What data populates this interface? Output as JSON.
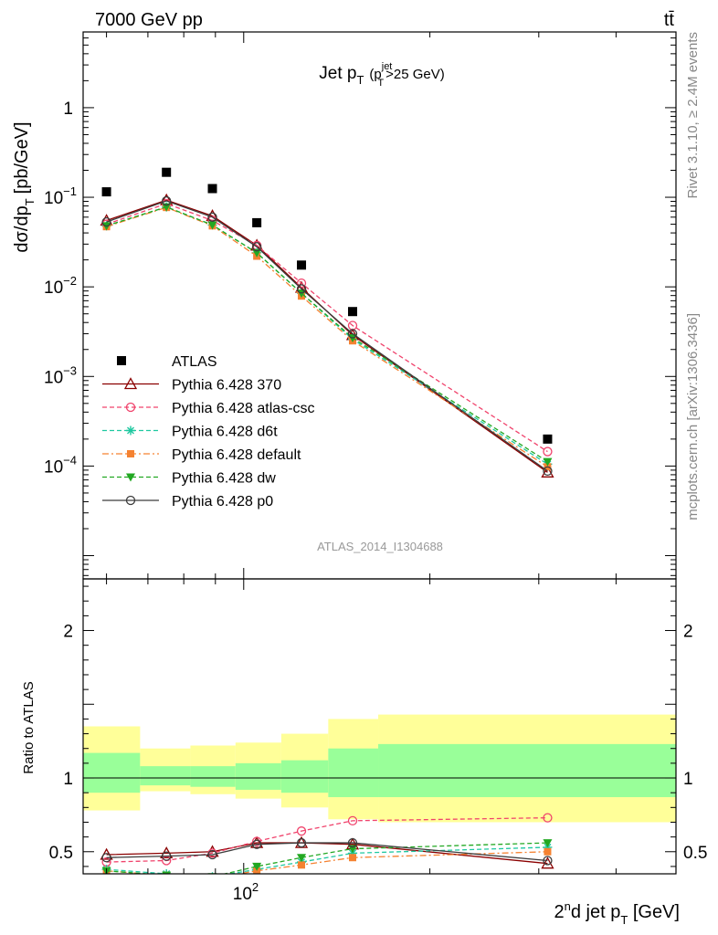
{
  "header": {
    "left": "7000 GeV pp",
    "right": "tt̄"
  },
  "side_labels": {
    "rivet": "Rivet 3.1.10, ≥ 2.4M events",
    "mcplots": "mcplots.cern.ch [arXiv:1306.3436]"
  },
  "watermark": "ATLAS_2014_I1304688",
  "chart_data": [
    {
      "type": "line",
      "title": "Jet pT (pT jet>25 GeV)",
      "title_parts": {
        "main": "Jet p",
        "sub": "T",
        "paren_open": "(p",
        "sup": "jet",
        "sub2": "T",
        "paren_close": ">25 GeV)"
      },
      "ylabel": "dσ/dp T [pb/GeV]",
      "ylabel_parts": {
        "main": "dσ/dp",
        "sub": "T",
        "unit": "[pb/GeV]"
      },
      "xscale": "log",
      "yscale": "log",
      "xlim": [
        55,
        500
      ],
      "ylim": [
        5.5e-06,
        7
      ],
      "ytick_labels": [
        {
          "value": 0.0001,
          "base": "10",
          "exp": "−4"
        },
        {
          "value": 0.001,
          "base": "10",
          "exp": "−3"
        },
        {
          "value": 0.01,
          "base": "10",
          "exp": "−2"
        },
        {
          "value": 0.1,
          "base": "10",
          "exp": "−1"
        },
        {
          "value": 1,
          "base": "1",
          "exp": ""
        }
      ],
      "legend_position": "bottom-left",
      "data": {
        "name": "ATLAS",
        "x": [
          60,
          75,
          89,
          105,
          124,
          150,
          310
        ],
        "xerr_edges": [
          [
            55,
            68
          ],
          [
            68,
            82
          ],
          [
            82,
            97
          ],
          [
            97,
            115
          ],
          [
            115,
            137
          ],
          [
            137,
            165
          ],
          [
            165,
            500
          ]
        ],
        "y": [
          0.115,
          0.19,
          0.125,
          0.052,
          0.0175,
          0.0053,
          0.0002
        ]
      },
      "series": [
        {
          "name": "Pythia 6.428 370",
          "color": "#8b0000",
          "dash": "solid",
          "marker": "triangle-open",
          "y": [
            0.055,
            0.093,
            0.062,
            0.029,
            0.0098,
            0.0029,
            8.5e-05
          ]
        },
        {
          "name": "Pythia 6.428 atlas-csc",
          "color": "#f0436c",
          "dash": "dashed",
          "marker": "circle-open",
          "y": [
            0.05,
            0.085,
            0.055,
            0.029,
            0.011,
            0.0037,
            0.000145
          ]
        },
        {
          "name": "Pythia 6.428 d6t",
          "color": "#1ec8a0",
          "dash": "dashed",
          "marker": "star",
          "y": [
            0.048,
            0.078,
            0.049,
            0.024,
            0.0085,
            0.0026,
            0.000105
          ]
        },
        {
          "name": "Pythia 6.428 default",
          "color": "#f58231",
          "dash": "dashdot",
          "marker": "square",
          "y": [
            0.047,
            0.077,
            0.048,
            0.022,
            0.0079,
            0.0025,
            9.8e-05
          ]
        },
        {
          "name": "Pythia 6.428 dw",
          "color": "#22a822",
          "dash": "dashed",
          "marker": "triangle-down",
          "y": [
            0.048,
            0.078,
            0.049,
            0.024,
            0.0085,
            0.0027,
            0.000112
          ]
        },
        {
          "name": "Pythia 6.428 p0",
          "color": "#3c3c3c",
          "dash": "solid",
          "marker": "circle-open",
          "y": [
            0.053,
            0.091,
            0.06,
            0.028,
            0.0095,
            0.003,
            8.8e-05
          ]
        }
      ]
    },
    {
      "type": "line",
      "title": "",
      "ylabel": "Ratio to ATLAS",
      "xlabel": "2nd jet pT [GeV]",
      "xlabel_parts": {
        "a": "2",
        "sup": "n",
        "b": "d jet p",
        "sub": "T",
        "unit": " [GeV]"
      },
      "xscale": "log",
      "xlim": [
        55,
        500
      ],
      "ylim": [
        0.35,
        2.35
      ],
      "yticks": [
        0.5,
        1,
        2
      ],
      "ytick_labels": [
        "0.5",
        "1",
        "2"
      ],
      "xtick_labels": [
        {
          "value": 100,
          "base": "10",
          "exp": "2"
        }
      ],
      "bands": [
        {
          "x": [
            55,
            68
          ],
          "outer": [
            0.78,
            1.35
          ],
          "inner": [
            0.9,
            1.17
          ]
        },
        {
          "x": [
            68,
            82
          ],
          "outer": [
            0.91,
            1.2
          ],
          "inner": [
            0.95,
            1.08
          ]
        },
        {
          "x": [
            82,
            97
          ],
          "outer": [
            0.89,
            1.22
          ],
          "inner": [
            0.94,
            1.08
          ]
        },
        {
          "x": [
            97,
            115
          ],
          "outer": [
            0.86,
            1.24
          ],
          "inner": [
            0.92,
            1.1
          ]
        },
        {
          "x": [
            115,
            137
          ],
          "outer": [
            0.8,
            1.3
          ],
          "inner": [
            0.9,
            1.12
          ]
        },
        {
          "x": [
            137,
            165
          ],
          "outer": [
            0.72,
            1.4
          ],
          "inner": [
            0.87,
            1.2
          ]
        },
        {
          "x": [
            165,
            500
          ],
          "outer": [
            0.7,
            1.43
          ],
          "inner": [
            0.87,
            1.23
          ]
        }
      ],
      "series": [
        {
          "name": "Pythia 6.428 370",
          "color": "#8b0000",
          "dash": "solid",
          "marker": "triangle-open",
          "y": [
            0.48,
            0.49,
            0.5,
            0.56,
            0.56,
            0.55,
            0.42
          ]
        },
        {
          "name": "Pythia 6.428 atlas-csc",
          "color": "#f0436c",
          "dash": "dashed",
          "marker": "circle-open",
          "y": [
            0.43,
            0.44,
            0.49,
            0.57,
            0.64,
            0.71,
            0.73
          ]
        },
        {
          "name": "Pythia 6.428 d6t",
          "color": "#1ec8a0",
          "dash": "dashed",
          "marker": "star",
          "y": [
            0.38,
            0.35,
            0.33,
            0.38,
            0.43,
            0.49,
            0.53
          ]
        },
        {
          "name": "Pythia 6.428 default",
          "color": "#f58231",
          "dash": "dashdot",
          "marker": "square",
          "y": [
            0.37,
            0.34,
            0.32,
            0.37,
            0.41,
            0.46,
            0.5
          ]
        },
        {
          "name": "Pythia 6.428 dw",
          "color": "#22a822",
          "dash": "dashed",
          "marker": "triangle-down",
          "y": [
            0.37,
            0.34,
            0.33,
            0.4,
            0.46,
            0.52,
            0.56
          ]
        },
        {
          "name": "Pythia 6.428 p0",
          "color": "#3c3c3c",
          "dash": "solid",
          "marker": "circle-open",
          "y": [
            0.46,
            0.47,
            0.48,
            0.55,
            0.56,
            0.56,
            0.44
          ]
        }
      ],
      "band_colors": {
        "outer": "#ffff99",
        "inner": "#99ff99"
      }
    }
  ]
}
